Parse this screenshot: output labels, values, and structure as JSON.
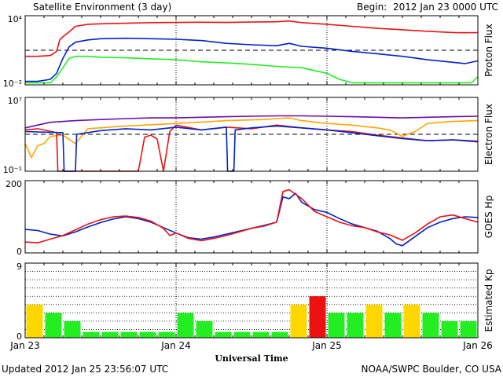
{
  "header": {
    "title": "Satellite Environment (3 day)",
    "begin_label": "Begin:",
    "begin_value": "2012 Jan 23 0000 UTC"
  },
  "footer": {
    "updated": "Updated 2012 Jan 25 23:56:07 UTC",
    "credit": "NOAA/SWPC Boulder, CO USA"
  },
  "colors": {
    "red": "#ee1111",
    "blue": "#0022cc",
    "green": "#22ee22",
    "orange": "#ffa500",
    "purple": "#6a0dad",
    "yellow": "#ffd700",
    "dashed": "#000000"
  },
  "chart_data": [
    {
      "type": "line",
      "ylabel": "Proton Flux",
      "log_scale": true,
      "ylim": [
        0.01,
        10000
      ],
      "y_tick_labels": [
        "10⁴",
        "10⁻²"
      ],
      "threshold": 10,
      "x_tick_labels": [
        "Jan 23",
        "Jan 24",
        "Jan 25",
        "Jan 26"
      ],
      "x_unit": "hours since 2012 Jan 23 00:00 UTC",
      "series": [
        {
          "color": "red",
          "points": [
            [
              0,
              3
            ],
            [
              2,
              3
            ],
            [
              4,
              3.5
            ],
            [
              5,
              8
            ],
            [
              5.5,
              80
            ],
            [
              6,
              150
            ],
            [
              7,
              400
            ],
            [
              8,
              1200
            ],
            [
              10,
              1800
            ],
            [
              12,
              2000
            ],
            [
              16,
              2200
            ],
            [
              20,
              2500
            ],
            [
              24,
              2600
            ],
            [
              28,
              2700
            ],
            [
              32,
              2600
            ],
            [
              36,
              2800
            ],
            [
              40,
              3000
            ],
            [
              42,
              3500
            ],
            [
              44,
              2500
            ],
            [
              48,
              1800
            ],
            [
              52,
              1200
            ],
            [
              56,
              800
            ],
            [
              60,
              600
            ],
            [
              64,
              450
            ],
            [
              68,
              350
            ],
            [
              70,
              330
            ],
            [
              72,
              340
            ]
          ]
        },
        {
          "color": "blue",
          "points": [
            [
              0,
              0.02
            ],
            [
              2,
              0.02
            ],
            [
              4,
              0.03
            ],
            [
              5,
              0.1
            ],
            [
              6,
              2
            ],
            [
              7,
              20
            ],
            [
              8,
              50
            ],
            [
              10,
              80
            ],
            [
              12,
              100
            ],
            [
              16,
              110
            ],
            [
              20,
              100
            ],
            [
              24,
              90
            ],
            [
              28,
              70
            ],
            [
              32,
              40
            ],
            [
              36,
              30
            ],
            [
              40,
              25
            ],
            [
              42,
              40
            ],
            [
              44,
              22
            ],
            [
              48,
              15
            ],
            [
              52,
              8
            ],
            [
              56,
              5
            ],
            [
              60,
              3
            ],
            [
              64,
              1.5
            ],
            [
              68,
              0.9
            ],
            [
              70,
              0.7
            ],
            [
              72,
              1.2
            ]
          ]
        },
        {
          "color": "green",
          "points": [
            [
              0,
              0.015
            ],
            [
              4,
              0.015
            ],
            [
              5,
              0.05
            ],
            [
              6,
              0.3
            ],
            [
              7,
              2
            ],
            [
              8,
              3
            ],
            [
              10,
              3
            ],
            [
              12,
              2.5
            ],
            [
              16,
              2.2
            ],
            [
              20,
              1.8
            ],
            [
              24,
              1.5
            ],
            [
              28,
              1
            ],
            [
              32,
              0.8
            ],
            [
              36,
              0.6
            ],
            [
              40,
              0.4
            ],
            [
              44,
              0.3
            ],
            [
              48,
              0.1
            ],
            [
              50,
              0.03
            ],
            [
              52,
              0.015
            ],
            [
              60,
              0.015
            ],
            [
              68,
              0.015
            ],
            [
              71,
              0.015
            ],
            [
              72,
              0.05
            ]
          ]
        }
      ]
    },
    {
      "type": "line",
      "ylabel": "Electron Flux",
      "log_scale": true,
      "ylim": [
        0.1,
        10000000
      ],
      "y_tick_labels": [
        "10⁷",
        "10⁻¹"
      ],
      "threshold": 1000,
      "x_tick_labels": [
        "Jan 23",
        "Jan 24",
        "Jan 25",
        "Jan 26"
      ],
      "series": [
        {
          "color": "orange",
          "points": [
            [
              0,
              100
            ],
            [
              1,
              3
            ],
            [
              2,
              60
            ],
            [
              3,
              100
            ],
            [
              4,
              600
            ],
            [
              6,
              800
            ],
            [
              8,
              100
            ],
            [
              10,
              4000
            ],
            [
              16,
              8000
            ],
            [
              24,
              15000
            ],
            [
              32,
              30000
            ],
            [
              38,
              40000
            ],
            [
              40,
              50000
            ],
            [
              42,
              60000
            ],
            [
              44,
              30000
            ],
            [
              48,
              15000
            ],
            [
              52,
              10000
            ],
            [
              56,
              5000
            ],
            [
              58,
              3000
            ],
            [
              60,
              600
            ],
            [
              62,
              2000
            ],
            [
              64,
              15000
            ],
            [
              68,
              25000
            ],
            [
              72,
              30000
            ]
          ]
        },
        {
          "color": "purple",
          "points": [
            [
              0,
              5000
            ],
            [
              4,
              20000
            ],
            [
              8,
              30000
            ],
            [
              12,
              40000
            ],
            [
              16,
              50000
            ],
            [
              20,
              60000
            ],
            [
              24,
              60000
            ],
            [
              28,
              70000
            ],
            [
              32,
              80000
            ],
            [
              36,
              90000
            ],
            [
              40,
              100000
            ],
            [
              44,
              100000
            ],
            [
              48,
              90000
            ],
            [
              52,
              80000
            ],
            [
              56,
              70000
            ],
            [
              60,
              60000
            ],
            [
              64,
              70000
            ],
            [
              68,
              80000
            ],
            [
              72,
              90000
            ]
          ]
        },
        {
          "color": "red",
          "points": [
            [
              0,
              3000
            ],
            [
              2,
              4000
            ],
            [
              5,
              1500
            ],
            [
              5.2,
              0.1
            ],
            [
              12,
              0.1
            ],
            [
              18,
              0.1
            ],
            [
              19,
              500
            ],
            [
              20,
              800
            ],
            [
              21,
              300
            ],
            [
              22,
              0.1
            ],
            [
              23,
              2000
            ],
            [
              24,
              10000
            ],
            [
              28,
              3000
            ],
            [
              32,
              6000
            ],
            [
              36,
              4000
            ],
            [
              40,
              10000
            ],
            [
              44,
              5000
            ],
            [
              48,
              3000
            ],
            [
              52,
              2000
            ],
            [
              56,
              800
            ],
            [
              60,
              400
            ],
            [
              64,
              200
            ],
            [
              68,
              250
            ],
            [
              72,
              150
            ]
          ]
        },
        {
          "color": "blue",
          "points": [
            [
              0,
              2000
            ],
            [
              6,
              1500
            ],
            [
              6.2,
              0.1
            ],
            [
              8,
              0.1
            ],
            [
              8.2,
              1000
            ],
            [
              12,
              2500
            ],
            [
              16,
              4000
            ],
            [
              20,
              3000
            ],
            [
              24,
              6000
            ],
            [
              28,
              3000
            ],
            [
              32,
              6000
            ],
            [
              32.2,
              0.1
            ],
            [
              33.2,
              0.1
            ],
            [
              33.4,
              3000
            ],
            [
              36,
              5000
            ],
            [
              40,
              8000
            ],
            [
              44,
              5000
            ],
            [
              48,
              3000
            ],
            [
              52,
              1500
            ],
            [
              56,
              700
            ],
            [
              60,
              350
            ],
            [
              64,
              200
            ],
            [
              68,
              250
            ],
            [
              72,
              180
            ]
          ]
        }
      ]
    },
    {
      "type": "line",
      "ylabel": "GOES Hp",
      "ylim": [
        0,
        200
      ],
      "y_tick_labels": [
        "200",
        "0"
      ],
      "x_tick_labels": [
        "Jan 23",
        "Jan 24",
        "Jan 25",
        "Jan 26"
      ],
      "series": [
        {
          "color": "blue",
          "points": [
            [
              0,
              65
            ],
            [
              2,
              62
            ],
            [
              4,
              52
            ],
            [
              6,
              47
            ],
            [
              8,
              58
            ],
            [
              10,
              72
            ],
            [
              12,
              84
            ],
            [
              14,
              94
            ],
            [
              16,
              100
            ],
            [
              18,
              95
            ],
            [
              20,
              85
            ],
            [
              22,
              70
            ],
            [
              24,
              55
            ],
            [
              26,
              42
            ],
            [
              28,
              38
            ],
            [
              30,
              44
            ],
            [
              32,
              52
            ],
            [
              34,
              60
            ],
            [
              36,
              68
            ],
            [
              38,
              76
            ],
            [
              40,
              85
            ],
            [
              41,
              155
            ],
            [
              42,
              150
            ],
            [
              43,
              165
            ],
            [
              44,
              140
            ],
            [
              46,
              120
            ],
            [
              48,
              112
            ],
            [
              50,
              95
            ],
            [
              52,
              80
            ],
            [
              54,
              70
            ],
            [
              56,
              60
            ],
            [
              58,
              40
            ],
            [
              59,
              25
            ],
            [
              60,
              20
            ],
            [
              62,
              45
            ],
            [
              64,
              70
            ],
            [
              66,
              85
            ],
            [
              68,
              95
            ],
            [
              70,
              100
            ],
            [
              72,
              98
            ]
          ]
        },
        {
          "color": "red",
          "points": [
            [
              0,
              30
            ],
            [
              2,
              28
            ],
            [
              4,
              38
            ],
            [
              6,
              48
            ],
            [
              8,
              64
            ],
            [
              10,
              80
            ],
            [
              12,
              92
            ],
            [
              14,
              100
            ],
            [
              16,
              102
            ],
            [
              18,
              98
            ],
            [
              20,
              88
            ],
            [
              22,
              68
            ],
            [
              23,
              48
            ],
            [
              24,
              55
            ],
            [
              26,
              40
            ],
            [
              28,
              34
            ],
            [
              30,
              40
            ],
            [
              32,
              48
            ],
            [
              34,
              58
            ],
            [
              36,
              68
            ],
            [
              38,
              74
            ],
            [
              40,
              85
            ],
            [
              41,
              170
            ],
            [
              42,
              175
            ],
            [
              44,
              150
            ],
            [
              46,
              115
            ],
            [
              48,
              100
            ],
            [
              50,
              85
            ],
            [
              52,
              75
            ],
            [
              54,
              70
            ],
            [
              56,
              58
            ],
            [
              58,
              50
            ],
            [
              60,
              35
            ],
            [
              62,
              55
            ],
            [
              64,
              80
            ],
            [
              66,
              100
            ],
            [
              68,
              105
            ],
            [
              70,
              95
            ],
            [
              72,
              85
            ]
          ]
        }
      ]
    },
    {
      "type": "bar",
      "ylabel": "Estimated Kp",
      "ylim": [
        0,
        9
      ],
      "y_tick_labels": [
        "9",
        "0"
      ],
      "x_tick_labels": [
        "Jan 23",
        "Jan 24",
        "Jan 25",
        "Jan 26"
      ],
      "bar_width_hours": 3,
      "values": [
        4,
        3,
        2,
        0.7,
        0.7,
        0.7,
        0.7,
        0.7,
        3,
        2,
        0.7,
        0.7,
        0.7,
        0.7,
        4,
        5,
        3,
        3,
        4,
        3,
        4,
        3,
        2,
        2
      ],
      "bar_colors": [
        "yellow",
        "green",
        "green",
        "green",
        "green",
        "green",
        "green",
        "green",
        "green",
        "green",
        "green",
        "green",
        "green",
        "green",
        "yellow",
        "red",
        "green",
        "green",
        "yellow",
        "green",
        "yellow",
        "green",
        "green",
        "green"
      ]
    }
  ],
  "shared": {
    "xlabel": "Universal Time",
    "x_tick_labels": [
      "Jan 23",
      "Jan 24",
      "Jan 25",
      "Jan 26"
    ]
  }
}
